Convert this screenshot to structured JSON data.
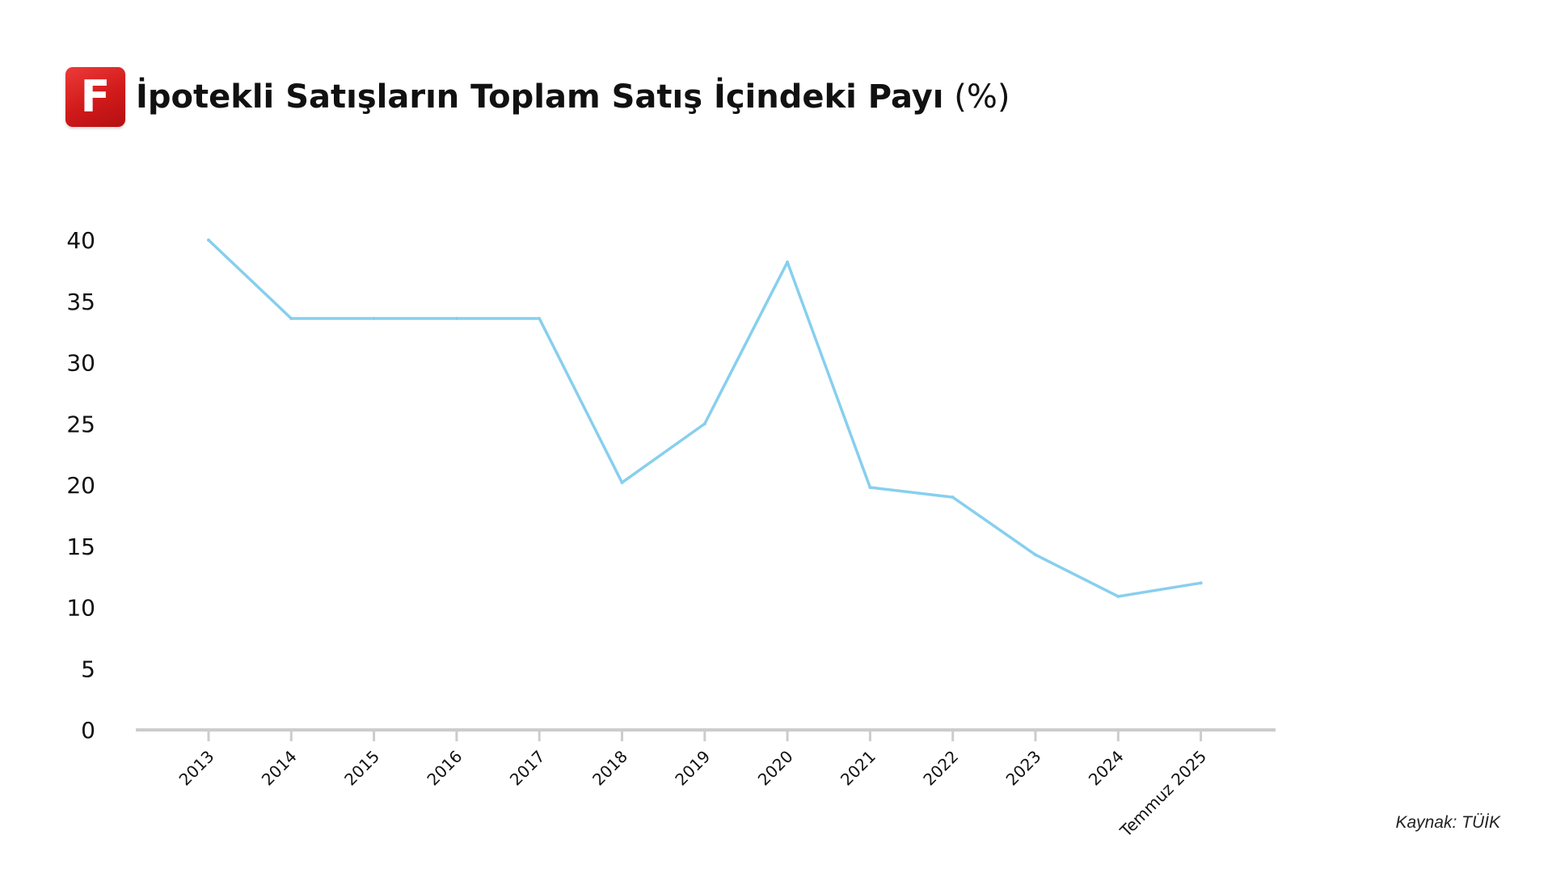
{
  "header": {
    "logo_letter": "F",
    "title": "İpotekli Satışların Toplam Satış İçindeki Payı",
    "title_unit": "(%)"
  },
  "source": "Kaynak: TÜİK",
  "colors": {
    "line": "#87cfee",
    "axis": "#cccccc",
    "logo": "#d8191c",
    "text": "#111111"
  },
  "chart_data": {
    "type": "line",
    "categories": [
      "2013",
      "2014",
      "2015",
      "2016",
      "2017",
      "2018",
      "2019",
      "2020",
      "2021",
      "2022",
      "2023",
      "2024",
      "Temmuz 2025"
    ],
    "series": [
      {
        "values": [
          40.0,
          33.6,
          33.6,
          33.6,
          33.6,
          20.2,
          25.0,
          38.2,
          19.8,
          19.0,
          14.3,
          10.9,
          12.0
        ]
      }
    ],
    "yticks": [
      0,
      5,
      10,
      15,
      20,
      25,
      30,
      35,
      40
    ],
    "ylim": [
      0,
      40
    ],
    "title": "İpotekli Satışların Toplam Satış İçindeki Payı (%)",
    "xlabel": "",
    "ylabel": "",
    "grid": false,
    "legend": "none"
  }
}
